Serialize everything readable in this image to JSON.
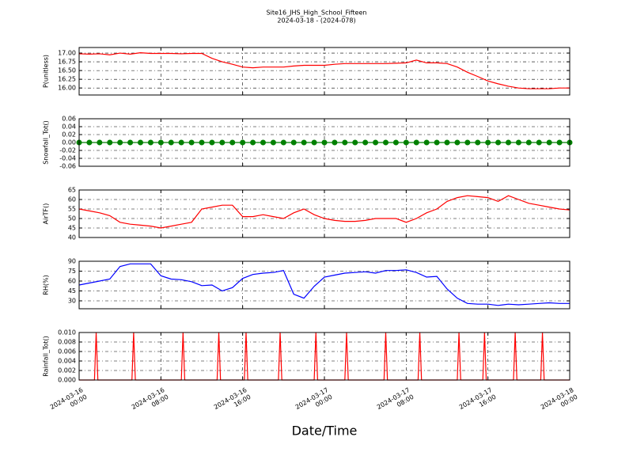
{
  "title": "Site16_JHS_High_School_Fifteen",
  "subtitle": "2024-03-18 - (2024-078)",
  "x_axis": {
    "label": "Date/Time",
    "xlim": [
      "2024-03-16 00:00",
      "2024-03-18 00:00"
    ],
    "xticks": [
      {
        "value": "2024-03-16 00:00",
        "label": "2024-03-16\n00:00"
      },
      {
        "value": "2024-03-16 08:00",
        "label": "2024-03-16\n08:00"
      },
      {
        "value": "2024-03-16 16:00",
        "label": "2024-03-16\n16:00"
      },
      {
        "value": "2024-03-17 00:00",
        "label": "2024-03-17\n00:00"
      },
      {
        "value": "2024-03-17 08:00",
        "label": "2024-03-17\n08:00"
      },
      {
        "value": "2024-03-17 16:00",
        "label": "2024-03-17\n16:00"
      },
      {
        "value": "2024-03-18 00:00",
        "label": "2024-03-18\n00:00"
      }
    ],
    "x": [
      "2024-03-16 00:00",
      "2024-03-16 01:00",
      "2024-03-16 02:00",
      "2024-03-16 03:00",
      "2024-03-16 04:00",
      "2024-03-16 05:00",
      "2024-03-16 06:00",
      "2024-03-16 07:00",
      "2024-03-16 08:00",
      "2024-03-16 09:00",
      "2024-03-16 10:00",
      "2024-03-16 11:00",
      "2024-03-16 12:00",
      "2024-03-16 13:00",
      "2024-03-16 14:00",
      "2024-03-16 15:00",
      "2024-03-16 16:00",
      "2024-03-16 17:00",
      "2024-03-16 18:00",
      "2024-03-16 19:00",
      "2024-03-16 20:00",
      "2024-03-16 21:00",
      "2024-03-16 22:00",
      "2024-03-16 23:00",
      "2024-03-17 00:00",
      "2024-03-17 01:00",
      "2024-03-17 02:00",
      "2024-03-17 03:00",
      "2024-03-17 04:00",
      "2024-03-17 05:00",
      "2024-03-17 06:00",
      "2024-03-17 07:00",
      "2024-03-17 08:00",
      "2024-03-17 09:00",
      "2024-03-17 10:00",
      "2024-03-17 11:00",
      "2024-03-17 12:00",
      "2024-03-17 13:00",
      "2024-03-17 14:00",
      "2024-03-17 15:00",
      "2024-03-17 16:00",
      "2024-03-17 17:00",
      "2024-03-17 18:00",
      "2024-03-17 19:00",
      "2024-03-17 20:00",
      "2024-03-17 21:00",
      "2024-03-17 22:00",
      "2024-03-17 23:00",
      "2024-03-18 00:00"
    ]
  },
  "chart_data": [
    {
      "type": "line",
      "ylabel": "P(unitless)",
      "color": "#ff0000",
      "grid": true,
      "ylim": [
        15.8,
        17.16
      ],
      "yticks": [
        {
          "value": 16.0,
          "label": "16.00"
        },
        {
          "value": 16.25,
          "label": "16.25"
        },
        {
          "value": 16.5,
          "label": "16.50"
        },
        {
          "value": 16.75,
          "label": "16.75"
        },
        {
          "value": 17.0,
          "label": "17.00"
        }
      ],
      "values": [
        16.98,
        16.97,
        16.98,
        16.95,
        17.0,
        16.97,
        17.01,
        16.99,
        16.99,
        16.99,
        16.98,
        16.99,
        16.99,
        16.85,
        16.75,
        16.68,
        16.6,
        16.58,
        16.6,
        16.6,
        16.6,
        16.63,
        16.65,
        16.65,
        16.65,
        16.68,
        16.7,
        16.7,
        16.7,
        16.7,
        16.7,
        16.71,
        16.72,
        16.8,
        16.72,
        16.72,
        16.7,
        16.6,
        16.45,
        16.33,
        16.2,
        16.12,
        16.05,
        16.0,
        15.98,
        15.98,
        15.98,
        16.0,
        16.0
      ]
    },
    {
      "type": "line",
      "ylabel": "Snowfall_Tot()",
      "color": "#008000",
      "marker": "o",
      "grid": true,
      "ylim": [
        -0.06,
        0.06
      ],
      "yticks": [
        -0.06,
        -0.04,
        -0.02,
        {
          "value": 0,
          "label": "0.00"
        },
        0.02,
        0.04,
        0.06
      ],
      "values": [
        0,
        0,
        0,
        0,
        0,
        0,
        0,
        0,
        0,
        0,
        0,
        0,
        0,
        0,
        0,
        0,
        0,
        0,
        0,
        0,
        0,
        0,
        0,
        0,
        0,
        0,
        0,
        0,
        0,
        0,
        0,
        0,
        0,
        0,
        0,
        0,
        0,
        0,
        0,
        0,
        0,
        0,
        0,
        0,
        0,
        0,
        0,
        0,
        0
      ]
    },
    {
      "type": "line",
      "ylabel": "AirTF()",
      "color": "#ff0000",
      "grid": true,
      "ylim": [
        40,
        65
      ],
      "yticks": [
        40,
        45,
        50,
        55,
        60,
        65
      ],
      "values": [
        55,
        54,
        53,
        51.5,
        48,
        47,
        46.5,
        46,
        45,
        46,
        47,
        48,
        55,
        56,
        57,
        57,
        51,
        51,
        52,
        51,
        50,
        53,
        55,
        52,
        50,
        49,
        48.5,
        48.5,
        49,
        50,
        50,
        50,
        48,
        50,
        53,
        55,
        59,
        61,
        62,
        61.5,
        61,
        59,
        62,
        60,
        58,
        57,
        56,
        55,
        54.5
      ]
    },
    {
      "type": "line",
      "ylabel": "RH(%)",
      "color": "#0000ff",
      "grid": true,
      "ylim": [
        18,
        90
      ],
      "yticks": [
        30,
        45,
        60,
        75,
        90
      ],
      "values": [
        54,
        57,
        60,
        63,
        82,
        86,
        86,
        86,
        68,
        63,
        62,
        59,
        53,
        54,
        45,
        50,
        64,
        70,
        72,
        73,
        76,
        40,
        34,
        52,
        66,
        69,
        72,
        73,
        74,
        72,
        76,
        76,
        77,
        73,
        66,
        67,
        48,
        34,
        26,
        25,
        25,
        23,
        25,
        24,
        25,
        26,
        27,
        26,
        26
      ]
    },
    {
      "type": "line",
      "ylabel": "Rainfall_Tot()",
      "color": "#ff0000",
      "grid": true,
      "ylim": [
        0,
        0.01
      ],
      "yticks": [
        {
          "value": 0,
          "label": "0.000"
        },
        {
          "value": 0.002,
          "label": "0.002"
        },
        {
          "value": 0.004,
          "label": "0.004"
        },
        {
          "value": 0.006,
          "label": "0.006"
        },
        {
          "value": 0.008,
          "label": "0.008"
        },
        {
          "value": 0.01,
          "label": "0.010"
        }
      ],
      "x": [
        "2024-03-16 00:00",
        "2024-03-16 01:30",
        "2024-03-16 01:40",
        "2024-03-16 01:50",
        "2024-03-16 05:10",
        "2024-03-16 05:20",
        "2024-03-16 05:30",
        "2024-03-16 10:00",
        "2024-03-16 10:10",
        "2024-03-16 10:20",
        "2024-03-16 13:30",
        "2024-03-16 13:40",
        "2024-03-16 13:50",
        "2024-03-16 16:10",
        "2024-03-16 16:20",
        "2024-03-16 16:30",
        "2024-03-16 19:30",
        "2024-03-16 19:40",
        "2024-03-16 19:50",
        "2024-03-16 23:00",
        "2024-03-16 23:10",
        "2024-03-16 23:20",
        "2024-03-17 02:00",
        "2024-03-17 02:10",
        "2024-03-17 02:20",
        "2024-03-17 05:50",
        "2024-03-17 06:00",
        "2024-03-17 06:10",
        "2024-03-17 09:10",
        "2024-03-17 09:20",
        "2024-03-17 09:30",
        "2024-03-17 13:00",
        "2024-03-17 13:10",
        "2024-03-17 13:20",
        "2024-03-17 15:30",
        "2024-03-17 15:40",
        "2024-03-17 15:50",
        "2024-03-17 18:30",
        "2024-03-17 18:40",
        "2024-03-17 18:50",
        "2024-03-17 21:10",
        "2024-03-17 21:20",
        "2024-03-17 21:30",
        "2024-03-18 00:00"
      ],
      "values": [
        0,
        0,
        0.01,
        0,
        0,
        0.01,
        0,
        0,
        0.01,
        0,
        0,
        0.01,
        0,
        0,
        0.01,
        0,
        0,
        0.01,
        0,
        0,
        0.01,
        0,
        0,
        0.01,
        0,
        0,
        0.01,
        0,
        0,
        0.01,
        0,
        0,
        0.01,
        0,
        0,
        0.01,
        0,
        0,
        0.01,
        0,
        0,
        0.01,
        0,
        0
      ]
    }
  ]
}
